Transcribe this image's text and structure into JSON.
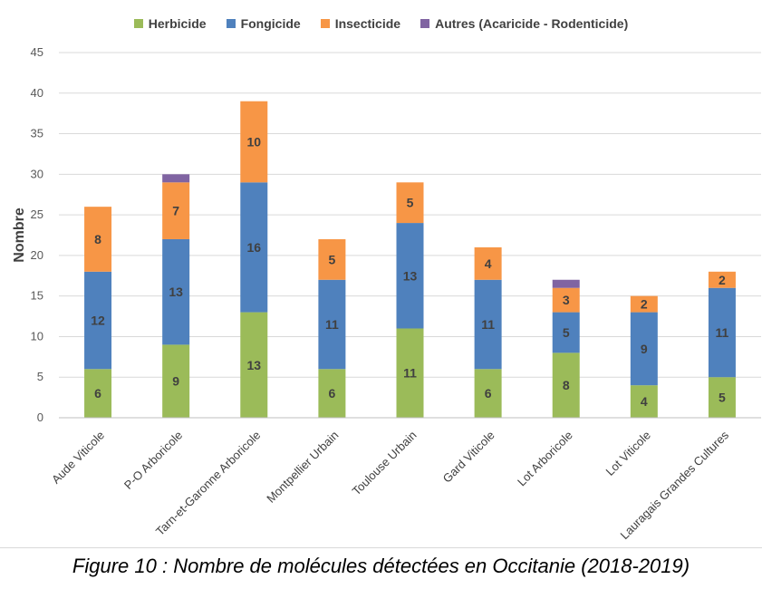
{
  "chart_data": {
    "type": "bar",
    "stacked": true,
    "categories": [
      "Aude Viticole",
      "P-O Arboricole",
      "Tarn-et-Garonne Arboricole",
      "Montpellier Urbain",
      "Toulouse Urbain",
      "Gard Viticole",
      "Lot Arboricole",
      "Lot Viticole",
      "Lauragais Grandes Cultures"
    ],
    "series": [
      {
        "name": "Herbicide",
        "color": "#9BBB59",
        "values": [
          6,
          9,
          13,
          6,
          11,
          6,
          8,
          4,
          5
        ]
      },
      {
        "name": "Fongicide",
        "color": "#4F81BD",
        "values": [
          12,
          13,
          16,
          11,
          13,
          11,
          5,
          9,
          11
        ]
      },
      {
        "name": "Insecticide",
        "color": "#F79646",
        "values": [
          8,
          7,
          10,
          5,
          5,
          4,
          3,
          2,
          2
        ]
      },
      {
        "name": "Autres (Acaricide - Rodenticide)",
        "color": "#8064A2",
        "values": [
          0,
          1,
          0,
          0,
          0,
          0,
          1,
          0,
          0
        ]
      }
    ],
    "ylabel": "Nombre",
    "xlabel": "",
    "ylim": [
      0,
      45
    ],
    "yticks": [
      0,
      5,
      10,
      15,
      20,
      25,
      30,
      35,
      40,
      45
    ],
    "grid": true,
    "legend_position": "top"
  },
  "caption": "Figure 10 : Nombre de molécules détectées en Occitanie (2018-2019)"
}
